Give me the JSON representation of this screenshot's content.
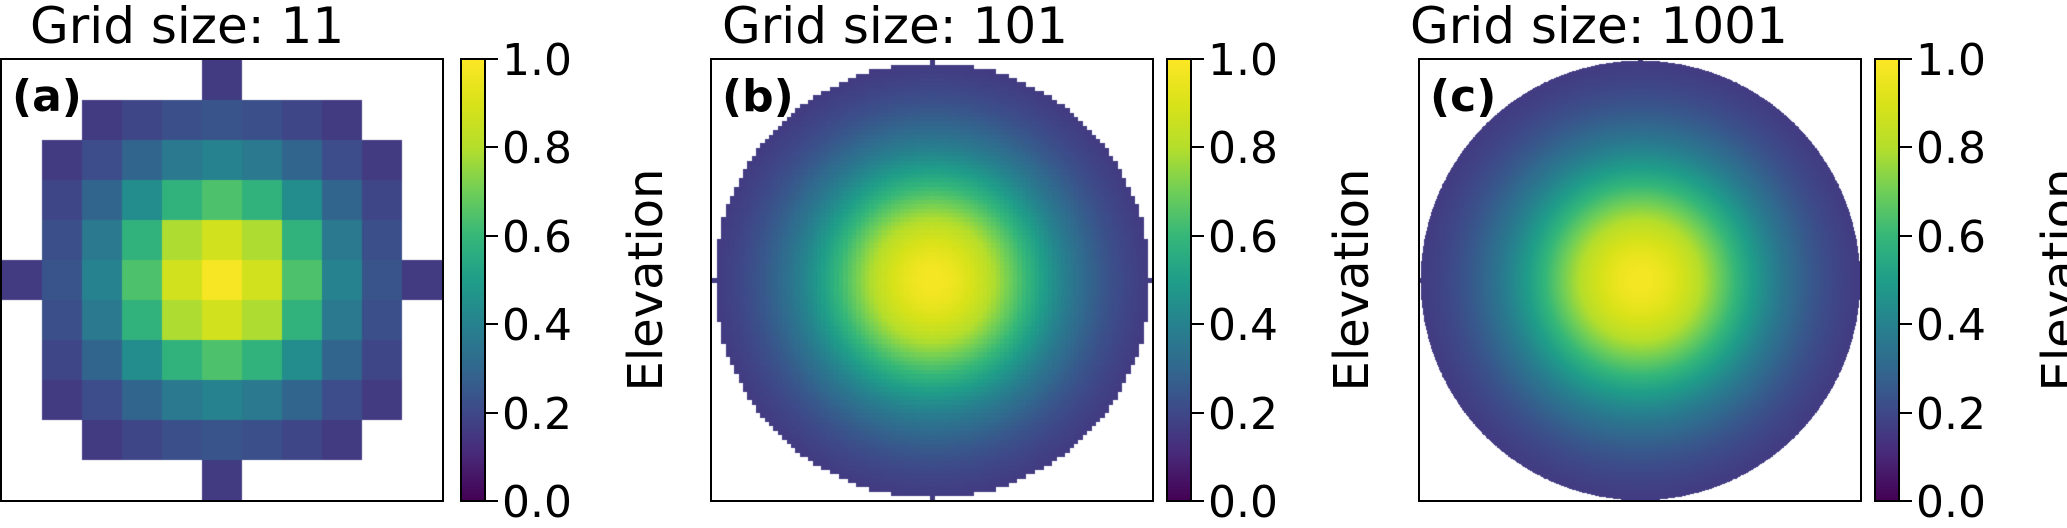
{
  "chart_data": [
    {
      "type": "heatmap",
      "panel_label": "(a)",
      "title": "Grid size: 11",
      "grid_size": 11,
      "colorbar": {
        "label": "Elevation",
        "ticks": [
          "0.0",
          "0.2",
          "0.4",
          "0.6",
          "0.8",
          "1.0"
        ],
        "range": [
          0,
          1
        ],
        "colormap": "viridis"
      }
    },
    {
      "type": "heatmap",
      "panel_label": "(b)",
      "title": "Grid size: 101",
      "grid_size": 101,
      "colorbar": {
        "label": "Elevation",
        "ticks": [
          "0.0",
          "0.2",
          "0.4",
          "0.6",
          "0.8",
          "1.0"
        ],
        "range": [
          0,
          1
        ],
        "colormap": "viridis"
      }
    },
    {
      "type": "heatmap",
      "panel_label": "(c)",
      "title": "Grid size: 1001",
      "grid_size": 1001,
      "colorbar": {
        "label": "Elevation",
        "ticks": [
          "0.0",
          "0.2",
          "0.4",
          "0.6",
          "0.8",
          "1.0"
        ],
        "range": [
          0,
          1
        ],
        "colormap": "viridis"
      }
    }
  ]
}
